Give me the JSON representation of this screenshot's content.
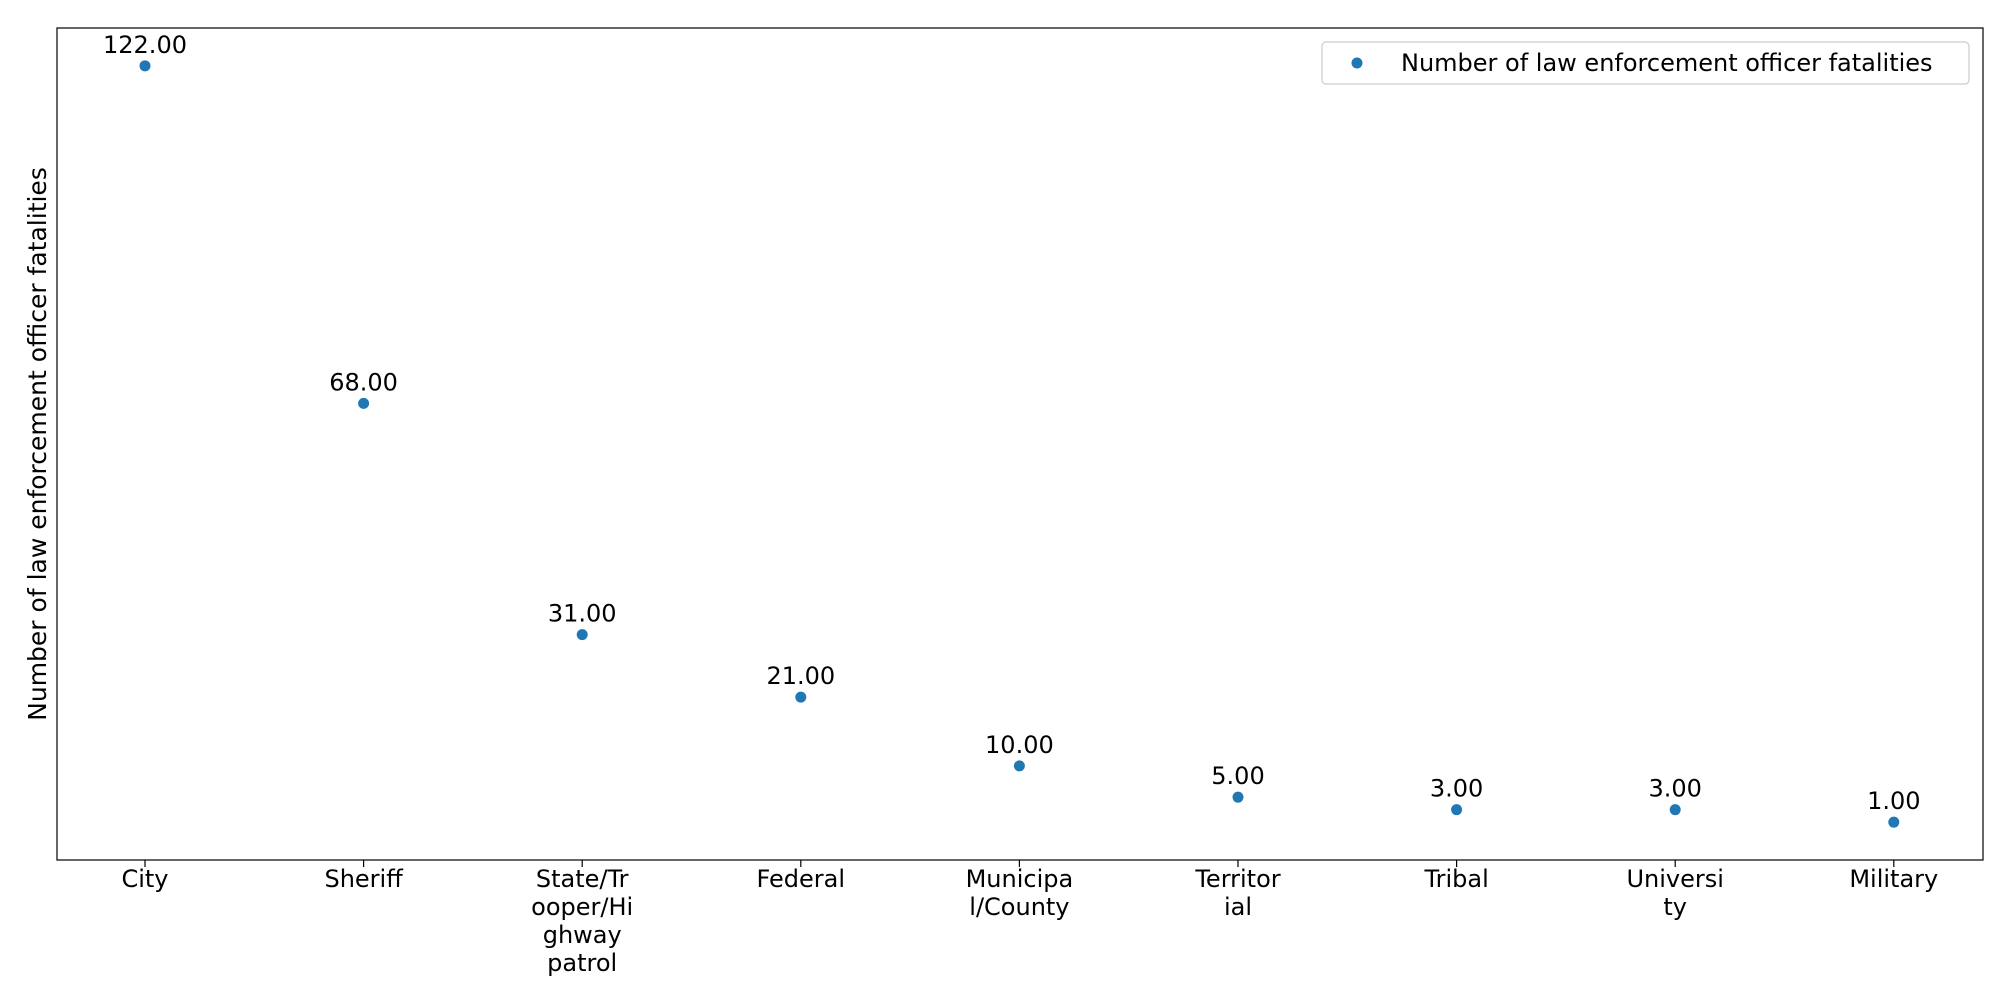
{
  "chart_data": {
    "type": "scatter",
    "categories": [
      "City",
      "Sheriff",
      "State/Trooper/Highway patrol",
      "Federal",
      "Municipal/County",
      "Territorial",
      "Tribal",
      "University",
      "Military"
    ],
    "category_label_lines": [
      [
        "City"
      ],
      [
        "Sheriff"
      ],
      [
        "State/Tr",
        "ooper/Hi",
        "ghway",
        "patrol"
      ],
      [
        "Federal"
      ],
      [
        "Municipa",
        "l/County"
      ],
      [
        "Territor",
        "ial"
      ],
      [
        "Tribal"
      ],
      [
        "Universi",
        "ty"
      ],
      [
        "Military"
      ]
    ],
    "series": [
      {
        "name": "Number of law enforcement officer fatalities",
        "values": [
          122,
          68,
          31,
          21,
          10,
          5,
          3,
          3,
          1
        ],
        "labels": [
          "122.00",
          "68.00",
          "31.00",
          "21.00",
          "10.00",
          "5.00",
          "3.00",
          "3.00",
          "1.00"
        ],
        "color": "#1f77b4"
      }
    ],
    "title": "",
    "xlabel": "",
    "ylabel": "Number of law enforcement officer fatalities",
    "ylim": [
      -5.05,
      128.05
    ],
    "y_ticks_visible": false,
    "grid": false,
    "legend_position": "top-right"
  }
}
